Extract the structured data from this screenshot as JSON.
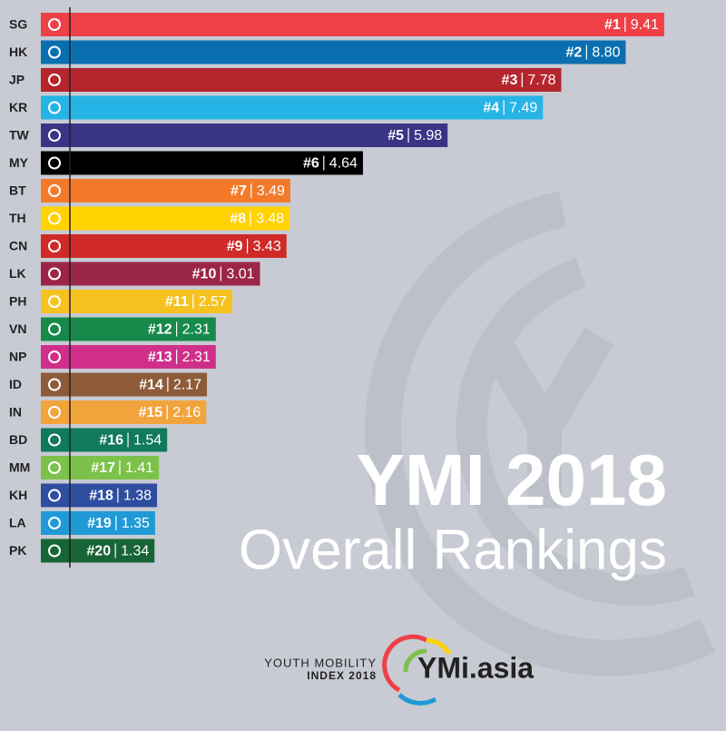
{
  "chart_data": {
    "type": "bar",
    "orientation": "horizontal",
    "title": "YMI 2018",
    "subtitle": "Overall Rankings",
    "categories": [
      "SG",
      "HK",
      "JP",
      "KR",
      "TW",
      "MY",
      "BT",
      "TH",
      "CN",
      "LK",
      "PH",
      "VN",
      "NP",
      "ID",
      "IN",
      "BD",
      "MM",
      "KH",
      "LA",
      "PK"
    ],
    "ranks": [
      "#1",
      "#2",
      "#3",
      "#4",
      "#5",
      "#6",
      "#7",
      "#8",
      "#9",
      "#10",
      "#11",
      "#12",
      "#13",
      "#14",
      "#15",
      "#16",
      "#17",
      "#18",
      "#19",
      "#20"
    ],
    "values": [
      9.41,
      8.8,
      7.78,
      7.49,
      5.98,
      4.64,
      3.49,
      3.48,
      3.43,
      3.01,
      2.57,
      2.31,
      2.31,
      2.17,
      2.16,
      1.54,
      1.41,
      1.38,
      1.35,
      1.34
    ],
    "value_labels": [
      "9.41",
      "8.80",
      "7.78",
      "7.49",
      "5.98",
      "4.64",
      "3.49",
      "3.48",
      "3.43",
      "3.01",
      "2.57",
      "2.31",
      "2.31",
      "2.17",
      "2.16",
      "1.54",
      "1.41",
      "1.38",
      "1.35",
      "1.34"
    ],
    "colors": [
      "#ef4048",
      "#0a6fb0",
      "#b5252d",
      "#26b4e6",
      "#3a3487",
      "#000000",
      "#f47a2a",
      "#ffd200",
      "#cf2a28",
      "#9b2548",
      "#f5c220",
      "#178a4b",
      "#cf2f8a",
      "#8d5b3a",
      "#f2a43c",
      "#107a5a",
      "#7cc24a",
      "#2f4ea0",
      "#1f9ad6",
      "#176536"
    ]
  },
  "footer": {
    "line1": "YOUTH MOBILITY",
    "line2": "INDEX 2018",
    "logo": "YMi.asia"
  }
}
